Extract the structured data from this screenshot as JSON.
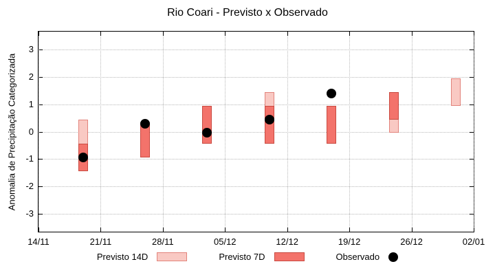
{
  "chart_data": {
    "type": "bar",
    "series_types": {
      "previsto_14d": "bar-range",
      "previsto_7d": "bar-range",
      "observado": "scatter"
    },
    "title": "Rio Coari - Previsto x Observado",
    "ylabel": "Anomalia de Precipitação Categorizada",
    "x_ticks": [
      "14/11",
      "21/11",
      "28/11",
      "05/12",
      "12/12",
      "19/12",
      "26/12",
      "02/01"
    ],
    "x_tick_interval_days": 7,
    "x_span_days": 49,
    "y_ticks": [
      3,
      2,
      1,
      0,
      -1,
      -2,
      -3
    ],
    "ylim": [
      -3.65,
      3.65
    ],
    "grid": true,
    "legend_position": "bottom",
    "legend": [
      {
        "label": "Previsto 14D",
        "series": "previsto_14d"
      },
      {
        "label": "Previsto 7D",
        "series": "previsto_7d"
      },
      {
        "label": "Observado",
        "series": "observado"
      }
    ],
    "colors": {
      "previsto_14d_fill": "#f9c9c3",
      "previsto_14d_border": "#e2837b",
      "previsto_7d_fill": "#f3736b",
      "previsto_7d_border": "#c94940",
      "observado": "#000000",
      "grid": "#b8b8b8"
    },
    "points": [
      {
        "date": "19/11",
        "day": 5,
        "previsto_14d": [
          -1.45,
          0.45
        ],
        "previsto_7d": [
          -1.45,
          -0.45
        ],
        "observado": -0.95
      },
      {
        "date": "26/11",
        "day": 12,
        "previsto_14d": null,
        "previsto_7d": [
          -0.95,
          0.35
        ],
        "observado": 0.3
      },
      {
        "date": "03/12",
        "day": 19,
        "previsto_14d": null,
        "previsto_7d": [
          -0.45,
          0.95
        ],
        "observado": -0.05
      },
      {
        "date": "10/12",
        "day": 26,
        "previsto_14d": [
          -0.45,
          1.45
        ],
        "previsto_7d": [
          -0.45,
          0.95
        ],
        "observado": 0.45
      },
      {
        "date": "17/12",
        "day": 33,
        "previsto_14d": null,
        "previsto_7d": [
          -0.45,
          0.95
        ],
        "observado": 1.4
      },
      {
        "date": "24/12",
        "day": 40,
        "previsto_14d": [
          -0.05,
          1.45
        ],
        "previsto_7d": [
          0.45,
          1.45
        ],
        "observado": null
      },
      {
        "date": "31/12",
        "day": 47,
        "previsto_14d": [
          0.95,
          1.95
        ],
        "previsto_7d": null,
        "observado": null
      }
    ]
  }
}
